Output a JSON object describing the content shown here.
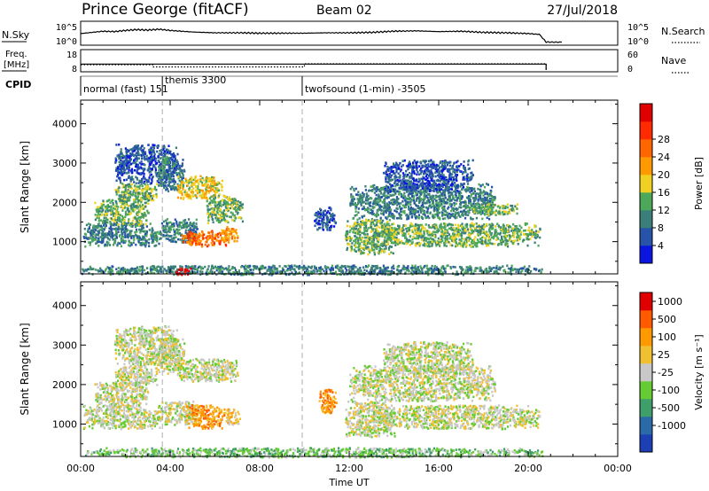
{
  "header": {
    "radar": "Prince George (fitACF)",
    "beam": "Beam 02",
    "date": "27/Jul/2018"
  },
  "panels": {
    "noise": {
      "left_label": "N.Sky",
      "left_ticks": [
        "10^5",
        "10^0"
      ],
      "right_ticks": [
        "10^5",
        "10^0"
      ],
      "right_label": "N.Search",
      "sky_level": [
        [
          0.0,
          2.3
        ],
        [
          0.5,
          2.6
        ],
        [
          1.0,
          2.9
        ],
        [
          1.5,
          2.8
        ],
        [
          2.0,
          3.1
        ],
        [
          2.5,
          3.3
        ],
        [
          3.0,
          3.2
        ],
        [
          3.5,
          3.4
        ],
        [
          4.0,
          3.1
        ],
        [
          4.5,
          2.9
        ],
        [
          5.0,
          2.7
        ],
        [
          6.0,
          2.5
        ],
        [
          7.0,
          2.5
        ],
        [
          8.0,
          2.4
        ],
        [
          9.0,
          2.4
        ],
        [
          10.0,
          2.4
        ],
        [
          11.0,
          2.5
        ],
        [
          12.0,
          2.5
        ],
        [
          13.0,
          2.6
        ],
        [
          14.0,
          2.9
        ],
        [
          15.0,
          3.0
        ],
        [
          16.0,
          2.8
        ],
        [
          17.0,
          2.9
        ],
        [
          18.0,
          2.6
        ],
        [
          19.0,
          2.5
        ],
        [
          20.0,
          2.3
        ],
        [
          20.5,
          2.1
        ],
        [
          20.8,
          0.1
        ],
        [
          21.5,
          0.1
        ]
      ]
    },
    "freq": {
      "left_label_1": "Freq.",
      "left_label_2": "[MHz]",
      "left_ticks": [
        "18",
        "8"
      ],
      "right_ticks": [
        "60",
        "0"
      ],
      "right_label": "Nave",
      "freq_mhz": [
        [
          0.0,
          11.0
        ],
        [
          0.05,
          11.2
        ],
        [
          20.75,
          11.2
        ],
        [
          20.8,
          8.0
        ]
      ],
      "nave": [
        [
          0.0,
          17
        ],
        [
          3.2,
          17
        ],
        [
          3.25,
          10
        ],
        [
          9.9,
          10
        ],
        [
          10.0,
          20
        ],
        [
          20.75,
          20
        ],
        [
          20.8,
          0
        ]
      ]
    },
    "cpid": {
      "label": "CPID",
      "modes": [
        {
          "start": 0.0,
          "text": "normal (fast) 151"
        },
        {
          "start": 3.65,
          "text": "themis 3300"
        },
        {
          "start": 9.9,
          "text": "twofsound (1-min) -3505"
        }
      ]
    }
  },
  "chart_data": [
    {
      "type": "heatmap",
      "title": "",
      "ylabel": "Slant Range [km]",
      "xlabel": "",
      "xlim": [
        0,
        24
      ],
      "ylim": [
        180,
        4600
      ],
      "y_ticks": [
        "1000",
        "2000",
        "3000",
        "4000"
      ],
      "colorbar": {
        "label": "Power [dB]",
        "ticks": [
          "4",
          "8",
          "12",
          "16",
          "20",
          "24",
          "28"
        ],
        "colors": [
          "#0a16e0",
          "#2754a8",
          "#3a7f7a",
          "#4ea85a",
          "#f0d020",
          "#ff9900",
          "#ff6600",
          "#ff2a00",
          "#e00000"
        ]
      },
      "blobs": [
        {
          "t0": 0.1,
          "t1": 3.6,
          "r0": 900,
          "r1": 1500,
          "level": 2
        },
        {
          "t0": 0.6,
          "t1": 3.0,
          "r0": 1450,
          "r1": 2100,
          "level": 3
        },
        {
          "t0": 1.5,
          "t1": 3.4,
          "r0": 2000,
          "r1": 2500,
          "level": 3
        },
        {
          "t0": 1.5,
          "t1": 4.3,
          "r0": 2500,
          "r1": 3500,
          "level": 1
        },
        {
          "t0": 3.4,
          "t1": 4.6,
          "r0": 2300,
          "r1": 3200,
          "level": 2
        },
        {
          "t0": 4.3,
          "t1": 6.3,
          "r0": 2100,
          "r1": 2700,
          "level": 4
        },
        {
          "t0": 3.6,
          "t1": 5.2,
          "r0": 1000,
          "r1": 1600,
          "level": 2
        },
        {
          "t0": 4.5,
          "t1": 6.5,
          "r0": 900,
          "r1": 1300,
          "level": 6
        },
        {
          "t0": 6.2,
          "t1": 7.0,
          "r0": 1000,
          "r1": 1400,
          "level": 5
        },
        {
          "t0": 5.6,
          "t1": 7.2,
          "r0": 1500,
          "r1": 2200,
          "level": 3
        },
        {
          "t0": 10.4,
          "t1": 11.4,
          "r0": 1300,
          "r1": 1900,
          "level": 1
        },
        {
          "t0": 11.8,
          "t1": 14.0,
          "r0": 700,
          "r1": 1600,
          "level": 3
        },
        {
          "t0": 13.0,
          "t1": 20.5,
          "r0": 900,
          "r1": 1500,
          "level": 3
        },
        {
          "t0": 12.0,
          "t1": 18.5,
          "r0": 1600,
          "r1": 2500,
          "level": 2
        },
        {
          "t0": 13.5,
          "t1": 17.5,
          "r0": 2300,
          "r1": 3100,
          "level": 1
        },
        {
          "t0": 17.5,
          "t1": 19.5,
          "r0": 1700,
          "r1": 2000,
          "level": 3
        },
        {
          "t0": 0.0,
          "t1": 20.6,
          "r0": 180,
          "r1": 420,
          "level": 2
        },
        {
          "t0": 4.2,
          "t1": 4.9,
          "r0": 180,
          "r1": 350,
          "level": 8
        }
      ]
    },
    {
      "type": "heatmap",
      "title": "",
      "ylabel": "Slant Range [km]",
      "xlabel": "Time UT",
      "xlim": [
        0,
        24
      ],
      "ylim": [
        180,
        4600
      ],
      "x_ticks": [
        "00:00",
        "04:00",
        "08:00",
        "12:00",
        "16:00",
        "20:00",
        "00:00"
      ],
      "y_ticks": [
        "1000",
        "2000",
        "3000",
        "4000"
      ],
      "colorbar": {
        "label": "Velocity [m s⁻¹]",
        "ticks": [
          "1000",
          "500",
          "100",
          "25",
          "-25",
          "-100",
          "-500",
          "-1000"
        ],
        "colors": [
          "#1d3fb5",
          "#2a6aa8",
          "#3f9f6a",
          "#66cc33",
          "#c8c8c8",
          "#f0c030",
          "#ff9900",
          "#ff5a00",
          "#e00000"
        ]
      },
      "blobs": [
        {
          "t0": 0.1,
          "t1": 3.6,
          "r0": 900,
          "r1": 1500,
          "level": 4
        },
        {
          "t0": 0.6,
          "t1": 3.0,
          "r0": 1450,
          "r1": 2100,
          "level": 4
        },
        {
          "t0": 1.5,
          "t1": 3.4,
          "r0": 2000,
          "r1": 2500,
          "level": 4
        },
        {
          "t0": 1.5,
          "t1": 4.3,
          "r0": 2500,
          "r1": 3500,
          "level": 4
        },
        {
          "t0": 3.4,
          "t1": 4.6,
          "r0": 2300,
          "r1": 3200,
          "level": 4
        },
        {
          "t0": 4.3,
          "t1": 7.0,
          "r0": 2100,
          "r1": 2700,
          "level": 4
        },
        {
          "t0": 3.6,
          "t1": 5.2,
          "r0": 1000,
          "r1": 1600,
          "level": 4
        },
        {
          "t0": 4.7,
          "t1": 6.4,
          "r0": 900,
          "r1": 1500,
          "level": 6
        },
        {
          "t0": 6.4,
          "t1": 7.1,
          "r0": 1000,
          "r1": 1400,
          "level": 5
        },
        {
          "t0": 10.6,
          "t1": 11.4,
          "r0": 1300,
          "r1": 1900,
          "level": 6
        },
        {
          "t0": 11.8,
          "t1": 14.0,
          "r0": 700,
          "r1": 1600,
          "level": 4
        },
        {
          "t0": 13.0,
          "t1": 20.5,
          "r0": 900,
          "r1": 1500,
          "level": 4
        },
        {
          "t0": 12.0,
          "t1": 18.5,
          "r0": 1600,
          "r1": 2500,
          "level": 4
        },
        {
          "t0": 13.5,
          "t1": 17.5,
          "r0": 2300,
          "r1": 3100,
          "level": 4
        },
        {
          "t0": 0.0,
          "t1": 20.6,
          "r0": 180,
          "r1": 420,
          "level": 3
        }
      ]
    }
  ]
}
